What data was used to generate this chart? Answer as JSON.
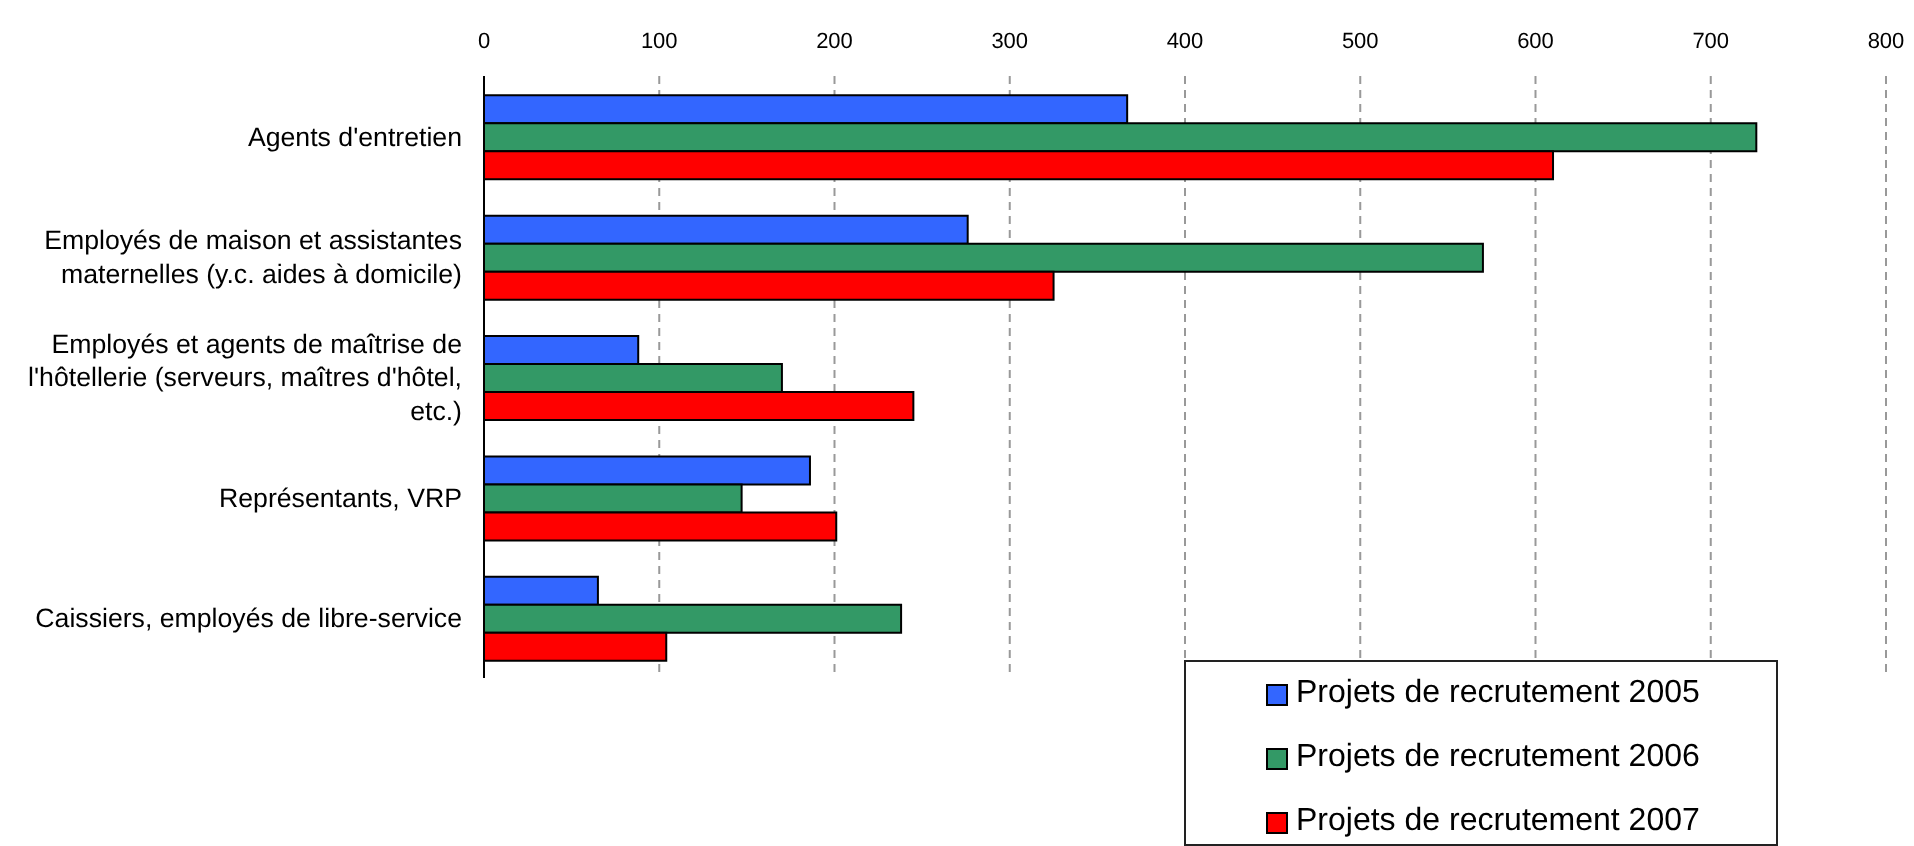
{
  "chart_data": {
    "type": "bar",
    "orientation": "horizontal",
    "categories": [
      "Agents d'entretien",
      "Employés de maison et assistantes maternelles (y.c. aides à domicile)",
      "Employés et agents de maîtrise de l'hôtellerie (serveurs, maîtres d'hôtel, etc.)",
      "Représentants, VRP",
      "Caissiers, employés de libre-service"
    ],
    "series": [
      {
        "name": "Projets de recrutement 2005",
        "color": "#3366ff",
        "values": [
          367,
          276,
          88,
          186,
          65
        ]
      },
      {
        "name": "Projets de recrutement 2006",
        "color": "#339966",
        "values": [
          726,
          570,
          170,
          147,
          238
        ]
      },
      {
        "name": "Projets de recrutement 2007",
        "color": "#ff0000",
        "values": [
          610,
          325,
          245,
          201,
          104
        ]
      }
    ],
    "xlim": [
      0,
      800
    ],
    "xticks": [
      0,
      100,
      200,
      300,
      400,
      500,
      600,
      700,
      800
    ],
    "grid": "x",
    "legend": "bottom right"
  }
}
